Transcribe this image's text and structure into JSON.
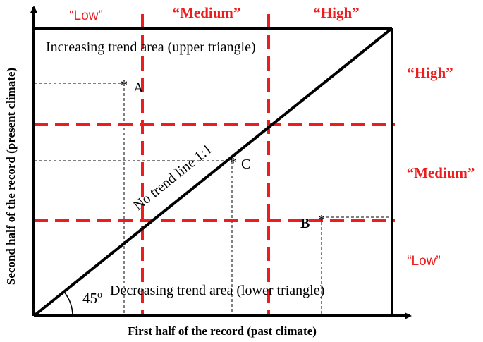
{
  "title": "",
  "axes": {
    "xlabel": "First half of the record (past climate)",
    "ylabel": "Second half of the record (present climate)"
  },
  "top_categories": [
    "“Low”",
    "“Medium”",
    "“High”"
  ],
  "right_categories": [
    "“High”",
    "“Medium”",
    "“Low”"
  ],
  "regions": {
    "upper": "Increasing trend area (upper triangle)",
    "lower": "Decreasing trend area (lower triangle)"
  },
  "trend_line_label": "No trend line 1:1",
  "angle_label": "45",
  "angle_unit": "o",
  "points": [
    {
      "label": "A",
      "marker": "*"
    },
    {
      "label": "C",
      "marker": "*"
    },
    {
      "label": "B",
      "marker": "*"
    }
  ],
  "colors": {
    "threshold": "#ee1c1c",
    "category_text": "#ee1c1c",
    "frame": "#000000"
  }
}
